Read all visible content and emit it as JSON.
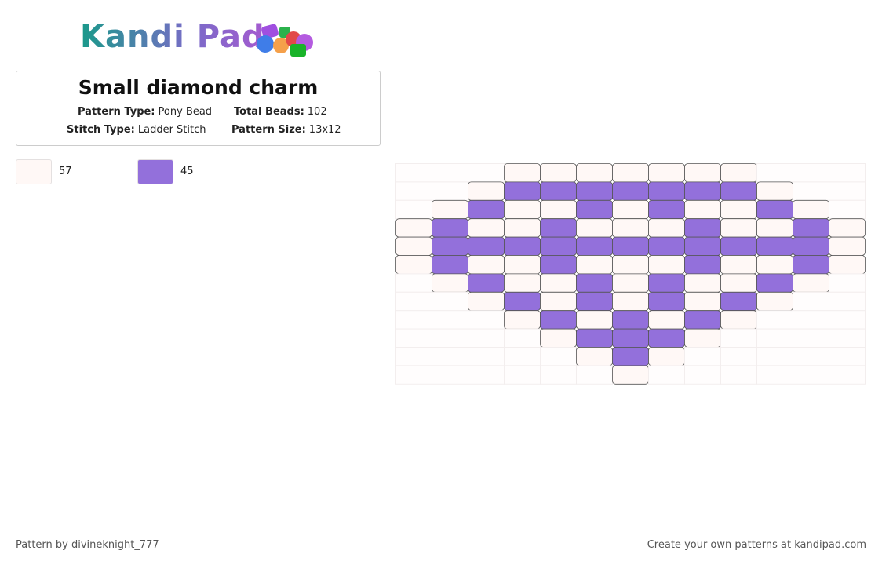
{
  "logo": {
    "text": "Kandi Pad"
  },
  "info": {
    "title": "Small diamond charm",
    "fields": [
      {
        "label": "Pattern Type:",
        "value": "Pony Bead"
      },
      {
        "label": "Total Beads:",
        "value": 102
      },
      {
        "label": "Stitch Type:",
        "value": "Ladder Stitch"
      },
      {
        "label": "Pattern Size:",
        "value": "13x12"
      }
    ]
  },
  "palette": [
    {
      "color": "#fff8f6",
      "count": 57
    },
    {
      "color": "#9370db",
      "count": 45
    }
  ],
  "pattern": {
    "rows": [
      "0001111111000",
      "0012222222100",
      "0121121211210",
      "1211211121121",
      "1222222222221",
      "1211211121121",
      "0121121211210",
      "0012121212100",
      "0001212121000",
      "0000122210000",
      "0000012100000",
      "0000001000000"
    ]
  },
  "footer": {
    "left": "Pattern by divineknight_777",
    "right": "Create your own patterns at kandipad.com"
  }
}
